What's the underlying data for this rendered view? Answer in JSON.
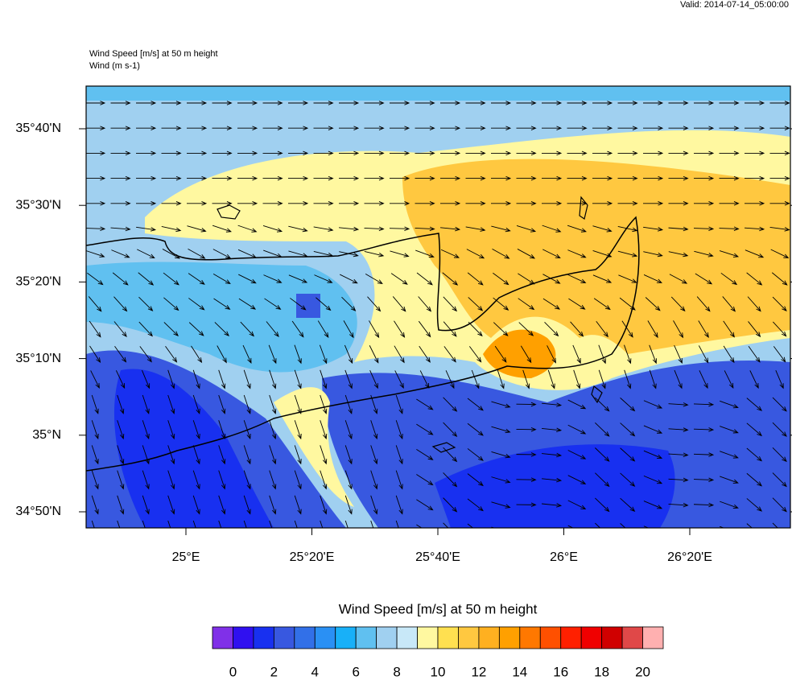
{
  "valid": "Valid: 2014-07-14_05:00:00",
  "header": {
    "title": "Wind Speed [m/s] at 50 m height",
    "subtitle": "Wind   (m s-1)"
  },
  "latitude_labels": [
    "35°40'N",
    "35°30'N",
    "35°20'N",
    "35°10'N",
    "35°N",
    "34°50'N"
  ],
  "longitude_labels": [
    "25°E",
    "25°20'E",
    "25°40'E",
    "26°E",
    "26°20'E"
  ],
  "colorbar": {
    "title": "Wind Speed [m/s] at 50 m height",
    "ticks": [
      0,
      2,
      4,
      6,
      8,
      10,
      12,
      14,
      16,
      18,
      20
    ],
    "colors": [
      "#8030e8",
      "#3010f0",
      "#1830f0",
      "#3858e0",
      "#3270e8",
      "#2a90f4",
      "#18b0f8",
      "#60c0f0",
      "#a0d0f0",
      "#c8e8f8",
      "#fff8a0",
      "#ffe050",
      "#ffc840",
      "#ffb020",
      "#ffa000",
      "#ff7800",
      "#ff5000",
      "#ff2000",
      "#f00000",
      "#d00000",
      "#e04848",
      "#ffb0b0"
    ]
  }
}
